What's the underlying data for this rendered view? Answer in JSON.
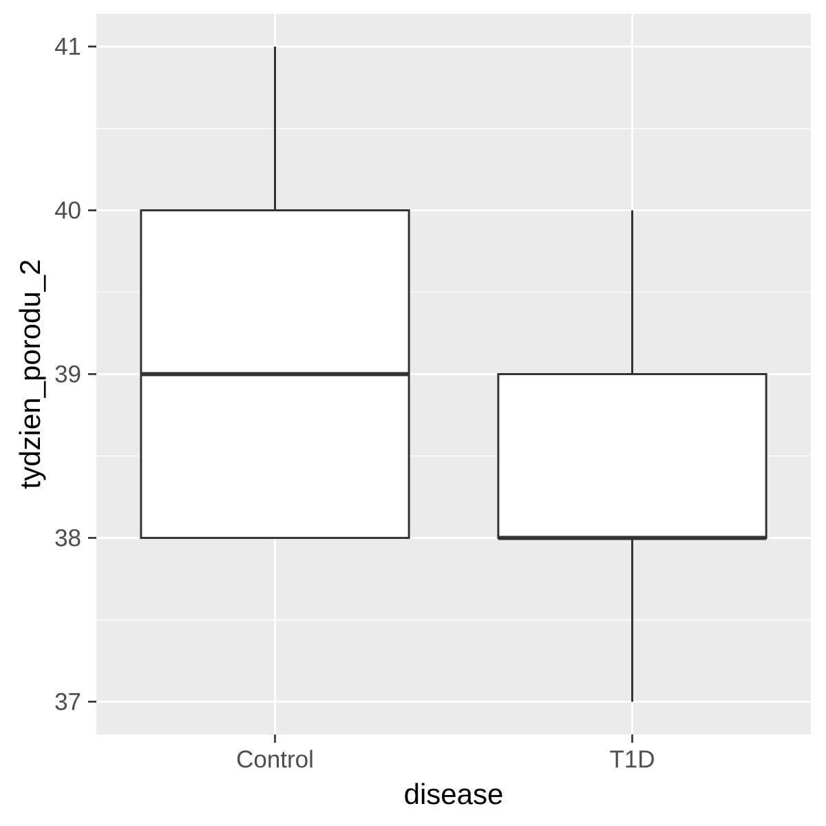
{
  "chart_data": {
    "type": "boxplot",
    "title": "",
    "xlabel": "disease",
    "ylabel": "tydzien_porodu_2",
    "categories": [
      "Control",
      "T1D"
    ],
    "boxes": [
      {
        "category": "Control",
        "lower_whisker": 38,
        "q1": 38,
        "median": 39,
        "q3": 40,
        "upper_whisker": 41
      },
      {
        "category": "T1D",
        "lower_whisker": 37,
        "q1": 38,
        "median": 38,
        "q3": 39,
        "upper_whisker": 40
      }
    ],
    "ylim": [
      36.8,
      41.2
    ],
    "y_ticks": [
      37,
      38,
      39,
      40,
      41
    ],
    "y_tick_labels": [
      "37",
      "38",
      "39",
      "40",
      "41"
    ],
    "grid": true,
    "colors": {
      "panel_background": "#EBEBEB",
      "grid": "#FFFFFF",
      "box_fill": "#FFFFFF",
      "box_line": "#333333",
      "tick_text": "#4D4D4D",
      "axis_title": "#000000"
    }
  }
}
